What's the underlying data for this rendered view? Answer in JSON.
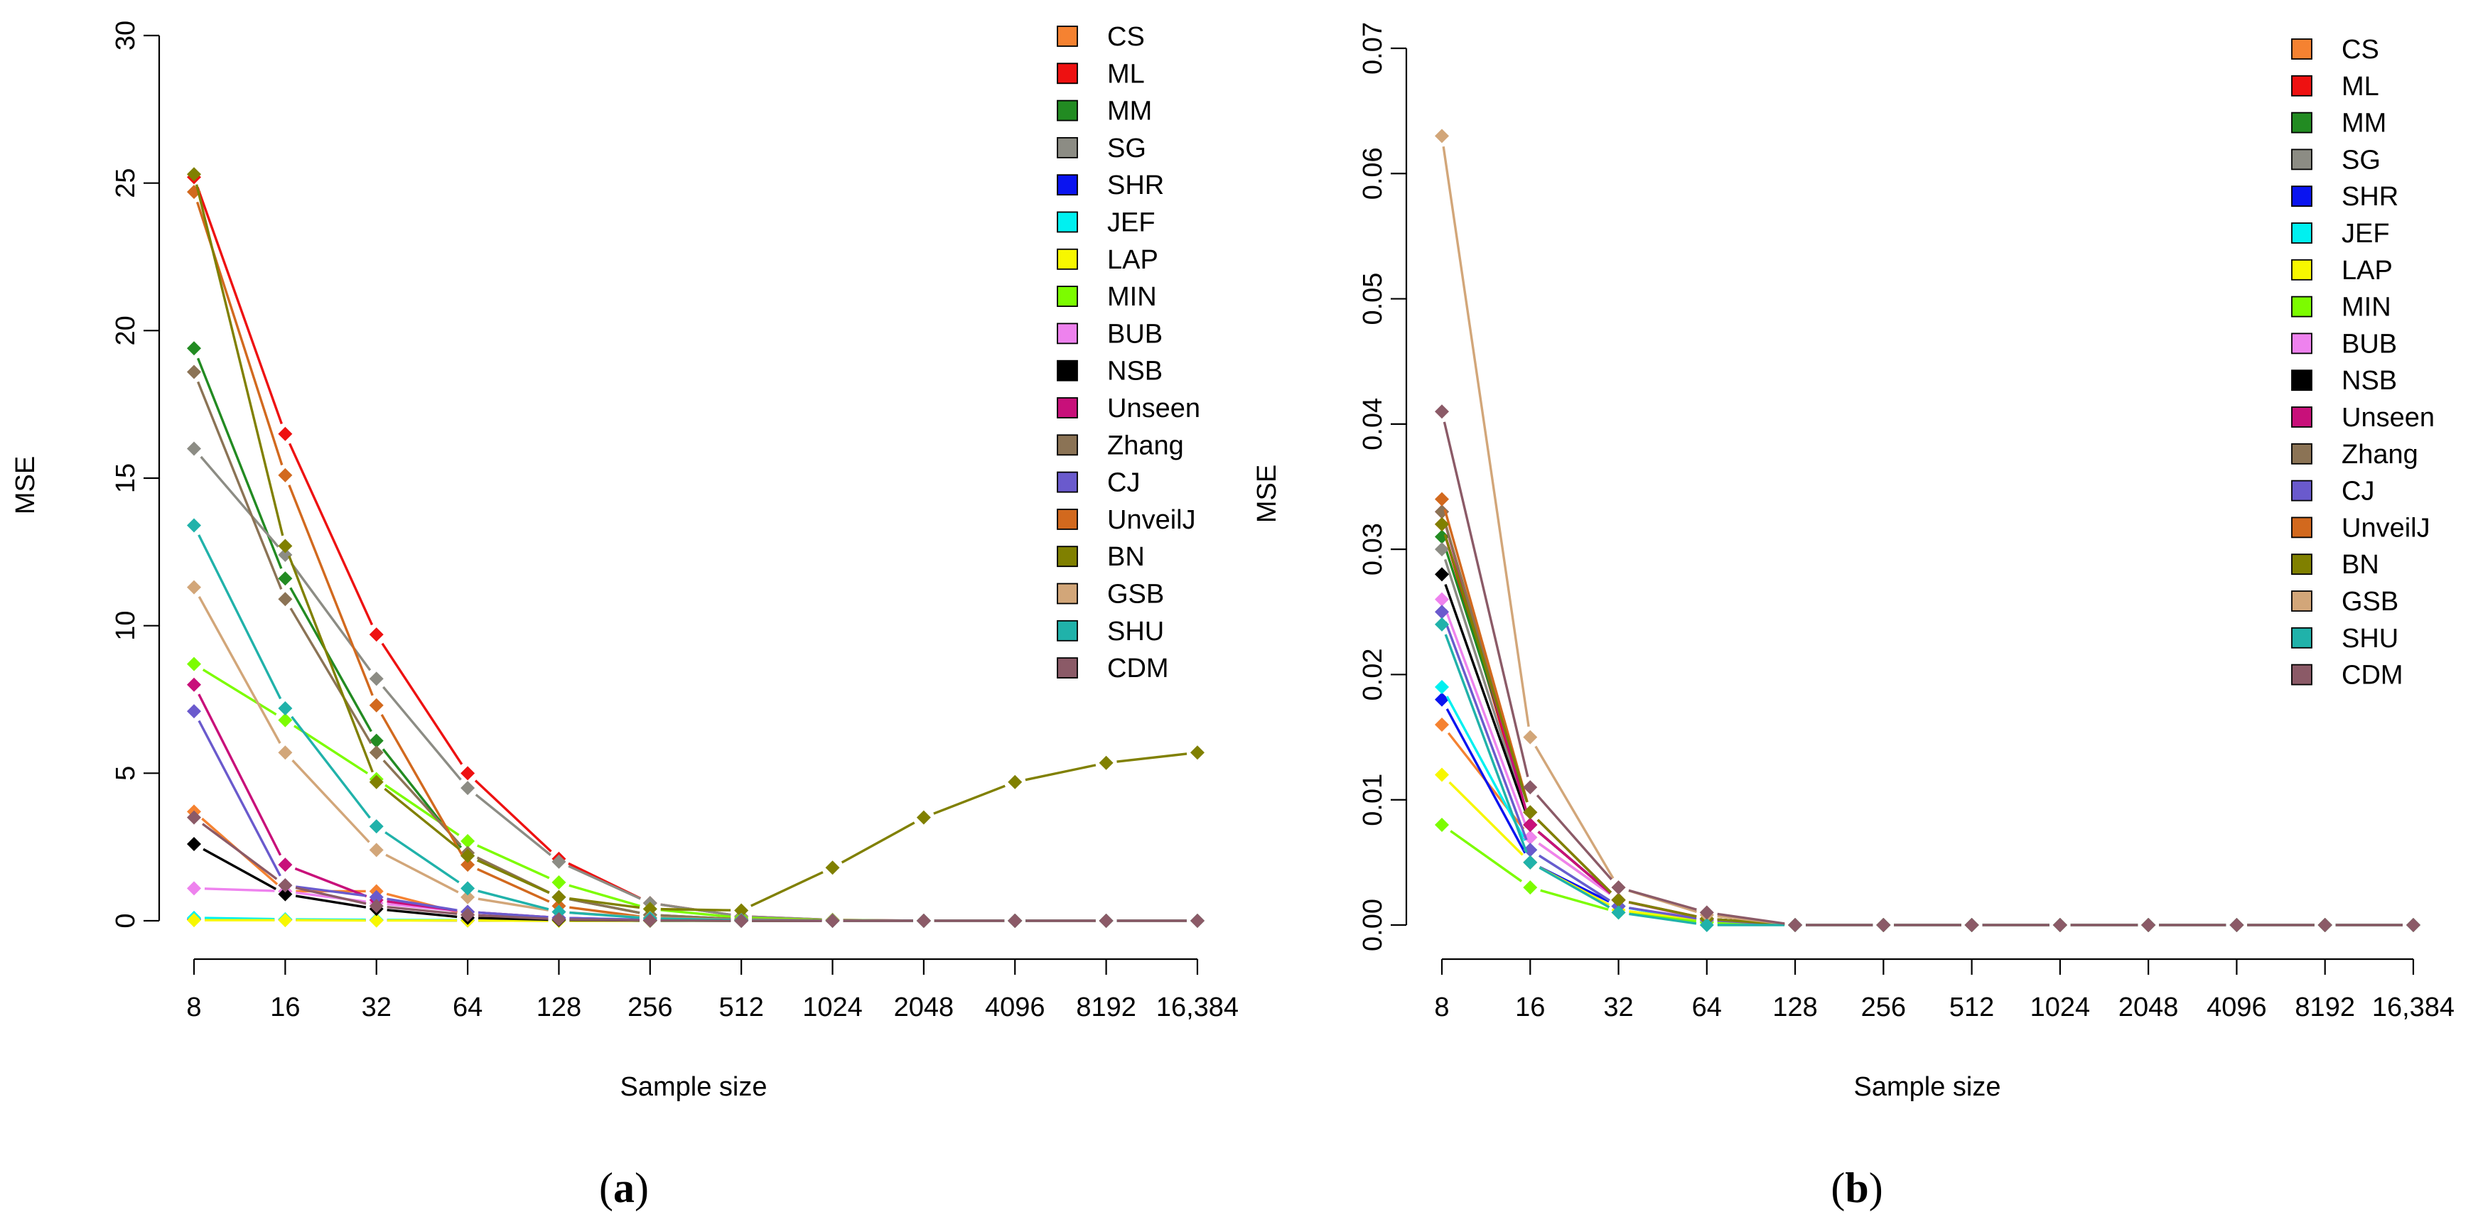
{
  "figure": {
    "colors": {
      "CS": "#f58231",
      "ML": "#ee1111",
      "MM": "#228b22",
      "SG": "#8c8c84",
      "SHR": "#0a14f0",
      "JEF": "#00f0f0",
      "LAP": "#f7f700",
      "MIN": "#7cfc00",
      "BUB": "#ee82ee",
      "NSB": "#000000",
      "Unseen": "#c8107a",
      "Zhang": "#8b7355",
      "CJ": "#6a5acd",
      "UnveilJ": "#d2691e",
      "BN": "#808000",
      "GSB": "#d2a679",
      "SHU": "#20b2aa",
      "CDM": "#8b5a67"
    }
  },
  "chart_data": [
    {
      "type": "line",
      "panel_label": "(a)",
      "title": "",
      "xlabel": "Sample size",
      "ylabel": "MSE",
      "categories": [
        "8",
        "16",
        "32",
        "64",
        "128",
        "256",
        "512",
        "1024",
        "2048",
        "4096",
        "8192",
        "16,384"
      ],
      "ylim": [
        0,
        30
      ],
      "yticks": [
        0,
        5,
        10,
        15,
        20,
        25,
        30
      ],
      "ytick_labels": [
        "0",
        "5",
        "10",
        "15",
        "20",
        "25",
        "30"
      ],
      "legend_position": "top-right",
      "series": [
        {
          "name": "CS",
          "values": [
            3.7,
            1.0,
            1.0,
            0.2,
            0.05,
            0.02,
            0.01,
            0,
            0,
            0,
            0,
            0
          ]
        },
        {
          "name": "ML",
          "values": [
            25.2,
            16.5,
            9.7,
            5.0,
            2.1,
            0.6,
            0.15,
            0.03,
            0,
            0,
            0,
            0
          ]
        },
        {
          "name": "MM",
          "values": [
            19.4,
            11.6,
            6.1,
            2.2,
            0.8,
            0.2,
            0.05,
            0.01,
            0,
            0,
            0,
            0
          ]
        },
        {
          "name": "SG",
          "values": [
            16.0,
            12.4,
            8.2,
            4.5,
            2.0,
            0.6,
            0.15,
            0.03,
            0,
            0,
            0,
            0
          ]
        },
        {
          "name": "SHR",
          "values": [
            0.05,
            0.03,
            0.02,
            0.01,
            0,
            0,
            0,
            0,
            0,
            0,
            0,
            0
          ]
        },
        {
          "name": "JEF",
          "values": [
            0.1,
            0.05,
            0.03,
            0.02,
            0.01,
            0,
            0,
            0,
            0,
            0,
            0,
            0
          ]
        },
        {
          "name": "LAP",
          "values": [
            0.02,
            0.02,
            0.01,
            0.01,
            0,
            0,
            0,
            0,
            0,
            0,
            0,
            0
          ]
        },
        {
          "name": "MIN",
          "values": [
            8.7,
            6.8,
            4.8,
            2.7,
            1.3,
            0.4,
            0.1,
            0.02,
            0,
            0,
            0,
            0
          ]
        },
        {
          "name": "BUB",
          "values": [
            1.1,
            1.0,
            0.6,
            0.3,
            0.1,
            0.03,
            0.01,
            0,
            0,
            0,
            0,
            0
          ]
        },
        {
          "name": "NSB",
          "values": [
            2.6,
            0.9,
            0.4,
            0.1,
            0.03,
            0.01,
            0,
            0,
            0,
            0,
            0,
            0
          ]
        },
        {
          "name": "Unseen",
          "values": [
            8.0,
            1.9,
            0.7,
            0.3,
            0.1,
            0.02,
            0.01,
            0,
            0,
            0,
            0,
            0
          ]
        },
        {
          "name": "Zhang",
          "values": [
            18.6,
            10.9,
            5.7,
            2.3,
            0.8,
            0.2,
            0.05,
            0.01,
            0,
            0,
            0,
            0
          ]
        },
        {
          "name": "CJ",
          "values": [
            7.1,
            1.2,
            0.8,
            0.3,
            0.1,
            0.03,
            0.01,
            0,
            0,
            0,
            0,
            0
          ]
        },
        {
          "name": "UnveilJ",
          "values": [
            24.7,
            15.1,
            7.3,
            1.9,
            0.5,
            0.1,
            0.02,
            0,
            0,
            0,
            0,
            0
          ]
        },
        {
          "name": "BN",
          "values": [
            25.3,
            12.7,
            4.7,
            2.2,
            0.8,
            0.4,
            0.35,
            1.8,
            3.5,
            4.7,
            5.35,
            5.7
          ]
        },
        {
          "name": "GSB",
          "values": [
            11.3,
            5.7,
            2.4,
            0.8,
            0.3,
            0.1,
            0.03,
            0.01,
            0,
            0,
            0,
            0
          ]
        },
        {
          "name": "SHU",
          "values": [
            13.4,
            7.2,
            3.2,
            1.1,
            0.3,
            0.08,
            0.02,
            0,
            0,
            0,
            0,
            0
          ]
        },
        {
          "name": "CDM",
          "values": [
            3.5,
            1.2,
            0.5,
            0.2,
            0.05,
            0.01,
            0,
            0,
            0,
            0,
            0,
            0
          ]
        }
      ]
    },
    {
      "type": "line",
      "panel_label": "(b)",
      "title": "",
      "xlabel": "Sample size",
      "ylabel": "MSE",
      "categories": [
        "8",
        "16",
        "32",
        "64",
        "128",
        "256",
        "512",
        "1024",
        "2048",
        "4096",
        "8192",
        "16,384"
      ],
      "ylim": [
        0,
        0.07
      ],
      "yticks": [
        0,
        0.01,
        0.02,
        0.03,
        0.04,
        0.05,
        0.06,
        0.07
      ],
      "ytick_labels": [
        "0.00",
        "0.01",
        "0.02",
        "0.03",
        "0.04",
        "0.05",
        "0.06",
        "0.07"
      ],
      "legend_position": "top-right",
      "series": [
        {
          "name": "CS",
          "values": [
            0.016,
            0.007,
            0.002,
            0.0005,
            0,
            0,
            0,
            0,
            0,
            0,
            0,
            0
          ]
        },
        {
          "name": "ML",
          "values": [
            0.032,
            0.008,
            0.002,
            0.0005,
            0,
            0,
            0,
            0,
            0,
            0,
            0,
            0
          ]
        },
        {
          "name": "MM",
          "values": [
            0.031,
            0.009,
            0.002,
            0.0005,
            0,
            0,
            0,
            0,
            0,
            0,
            0,
            0
          ]
        },
        {
          "name": "SG",
          "values": [
            0.03,
            0.008,
            0.002,
            0.0005,
            0,
            0,
            0,
            0,
            0,
            0,
            0,
            0
          ]
        },
        {
          "name": "SHR",
          "values": [
            0.018,
            0.005,
            0.0015,
            0.0003,
            0,
            0,
            0,
            0,
            0,
            0,
            0,
            0
          ]
        },
        {
          "name": "JEF",
          "values": [
            0.019,
            0.006,
            0.0015,
            0.0003,
            0,
            0,
            0,
            0,
            0,
            0,
            0,
            0
          ]
        },
        {
          "name": "LAP",
          "values": [
            0.012,
            0.005,
            0.0012,
            0.0003,
            0,
            0,
            0,
            0,
            0,
            0,
            0,
            0
          ]
        },
        {
          "name": "MIN",
          "values": [
            0.008,
            0.003,
            0.001,
            0.0002,
            0,
            0,
            0,
            0,
            0,
            0,
            0,
            0
          ]
        },
        {
          "name": "BUB",
          "values": [
            0.026,
            0.007,
            0.002,
            0.0004,
            0,
            0,
            0,
            0,
            0,
            0,
            0,
            0
          ]
        },
        {
          "name": "NSB",
          "values": [
            0.028,
            0.008,
            0.002,
            0.0005,
            0,
            0,
            0,
            0,
            0,
            0,
            0,
            0
          ]
        },
        {
          "name": "Unseen",
          "values": [
            0.033,
            0.008,
            0.002,
            0.0005,
            0,
            0,
            0,
            0,
            0,
            0,
            0,
            0
          ]
        },
        {
          "name": "Zhang",
          "values": [
            0.033,
            0.009,
            0.002,
            0.0005,
            0,
            0,
            0,
            0,
            0,
            0,
            0,
            0
          ]
        },
        {
          "name": "CJ",
          "values": [
            0.025,
            0.006,
            0.0015,
            0.0004,
            0,
            0,
            0,
            0,
            0,
            0,
            0,
            0
          ]
        },
        {
          "name": "UnveilJ",
          "values": [
            0.034,
            0.009,
            0.002,
            0.0005,
            0,
            0,
            0,
            0,
            0,
            0,
            0,
            0
          ]
        },
        {
          "name": "BN",
          "values": [
            0.032,
            0.009,
            0.002,
            0.0005,
            0,
            0,
            0,
            0,
            0,
            0,
            0,
            0
          ]
        },
        {
          "name": "GSB",
          "values": [
            0.063,
            0.015,
            0.003,
            0.0008,
            0,
            0,
            0,
            0,
            0,
            0,
            0,
            0
          ]
        },
        {
          "name": "SHU",
          "values": [
            0.024,
            0.005,
            0.001,
            0,
            0,
            0,
            0,
            0,
            0,
            0,
            0,
            0
          ]
        },
        {
          "name": "CDM",
          "values": [
            0.041,
            0.011,
            0.003,
            0.001,
            0,
            0,
            0,
            0,
            0,
            0,
            0,
            0
          ]
        }
      ]
    }
  ]
}
